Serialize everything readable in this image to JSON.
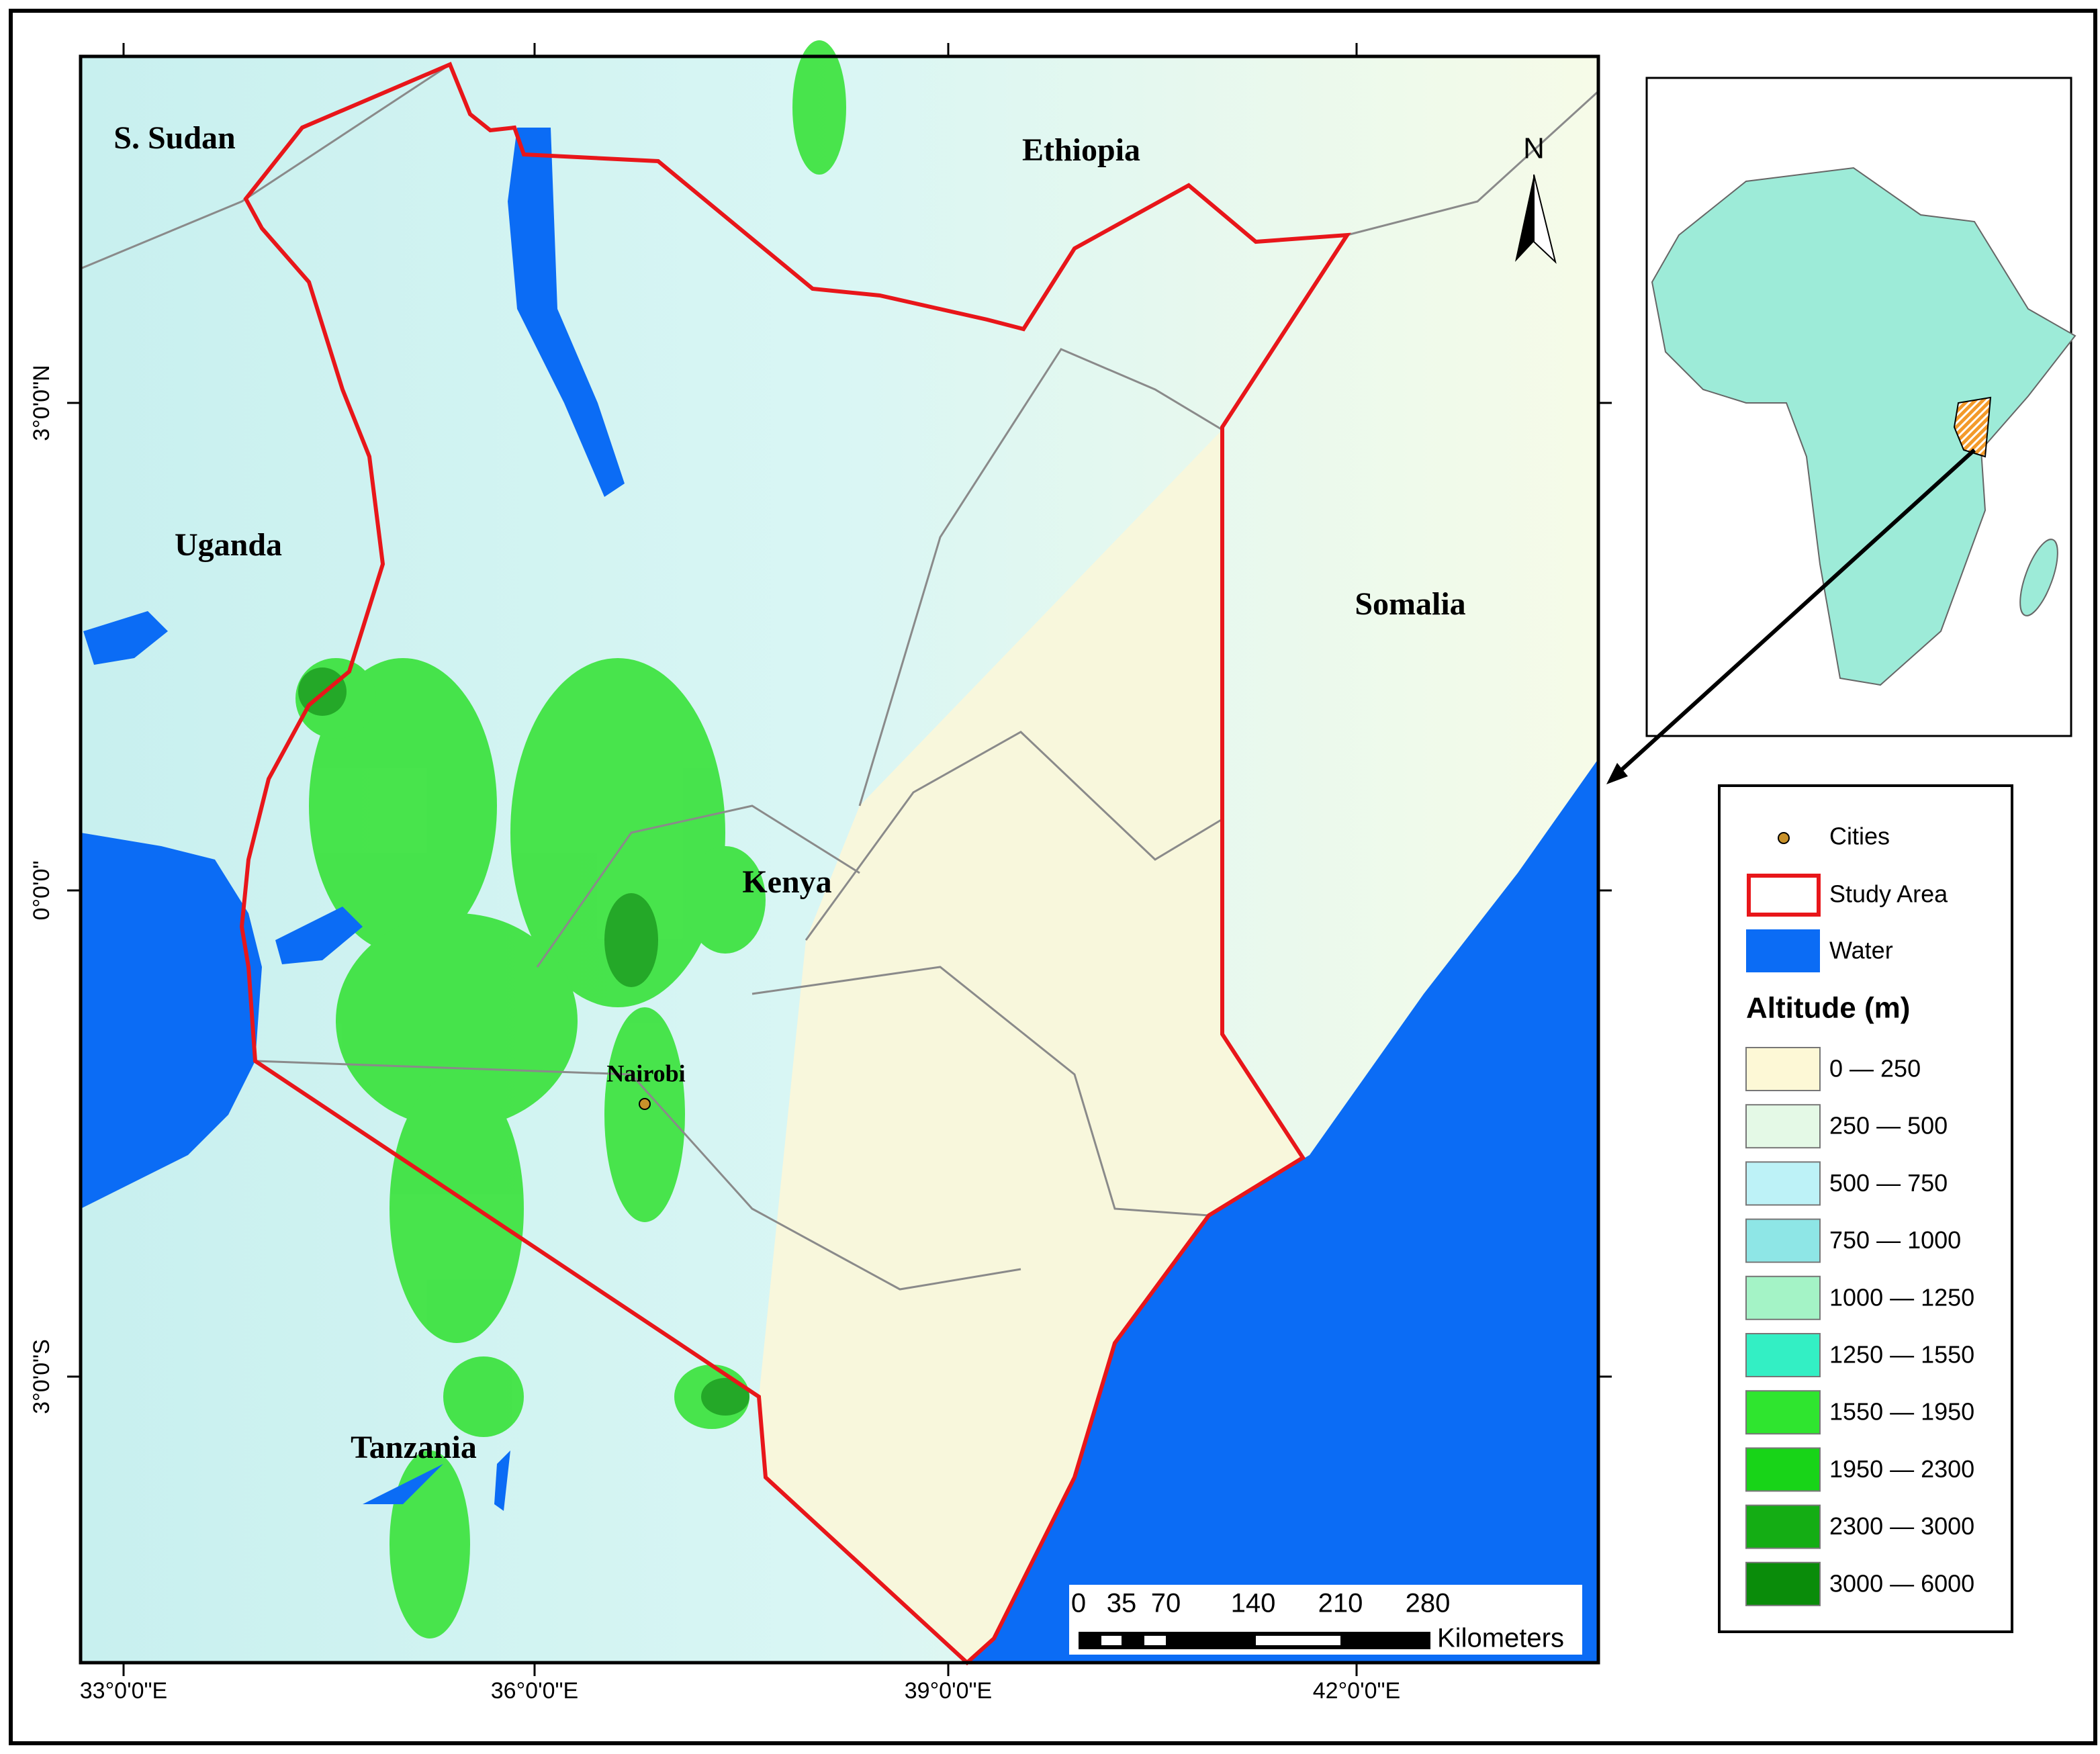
{
  "map": {
    "place_labels": {
      "south_sudan": "S. Sudan",
      "ethiopia": "Ethiopia",
      "uganda": "Uganda",
      "somalia": "Somalia",
      "kenya": "Kenya",
      "tanzania": "Tanzania",
      "nairobi": "Nairobi"
    },
    "longitude_labels": [
      "33°0'0\"E",
      "36°0'0\"E",
      "39°0'0\"E",
      "42°0'0\"E"
    ],
    "latitude_labels": [
      "3°0'0\"N",
      "0°0'0\"",
      "3°0'0\"S"
    ],
    "north_arrow": "N",
    "scale_bar": {
      "ticks": [
        "0",
        "35",
        "70",
        "140",
        "210",
        "280"
      ],
      "unit": "Kilometers"
    },
    "legend": {
      "items": [
        "Cities",
        "Study Area",
        "Water"
      ],
      "altitude_title": "Altitude (m)",
      "altitude_classes": [
        {
          "label": "0 — 250",
          "color": "#fdf8d6"
        },
        {
          "label": "250 — 500",
          "color": "#e4f9e6"
        },
        {
          "label": "500 — 750",
          "color": "#bdf2f7"
        },
        {
          "label": "750 — 1000",
          "color": "#8ee6e6"
        },
        {
          "label": "1000 — 1250",
          "color": "#a4f3c6"
        },
        {
          "label": "1250 — 1550",
          "color": "#33efc4"
        },
        {
          "label": "1550 — 1950",
          "color": "#2fe52f"
        },
        {
          "label": "1950 — 2300",
          "color": "#18d418"
        },
        {
          "label": "2300 — 3000",
          "color": "#14ad14"
        },
        {
          "label": "3000 — 6000",
          "color": "#0a8c0a"
        }
      ]
    }
  }
}
